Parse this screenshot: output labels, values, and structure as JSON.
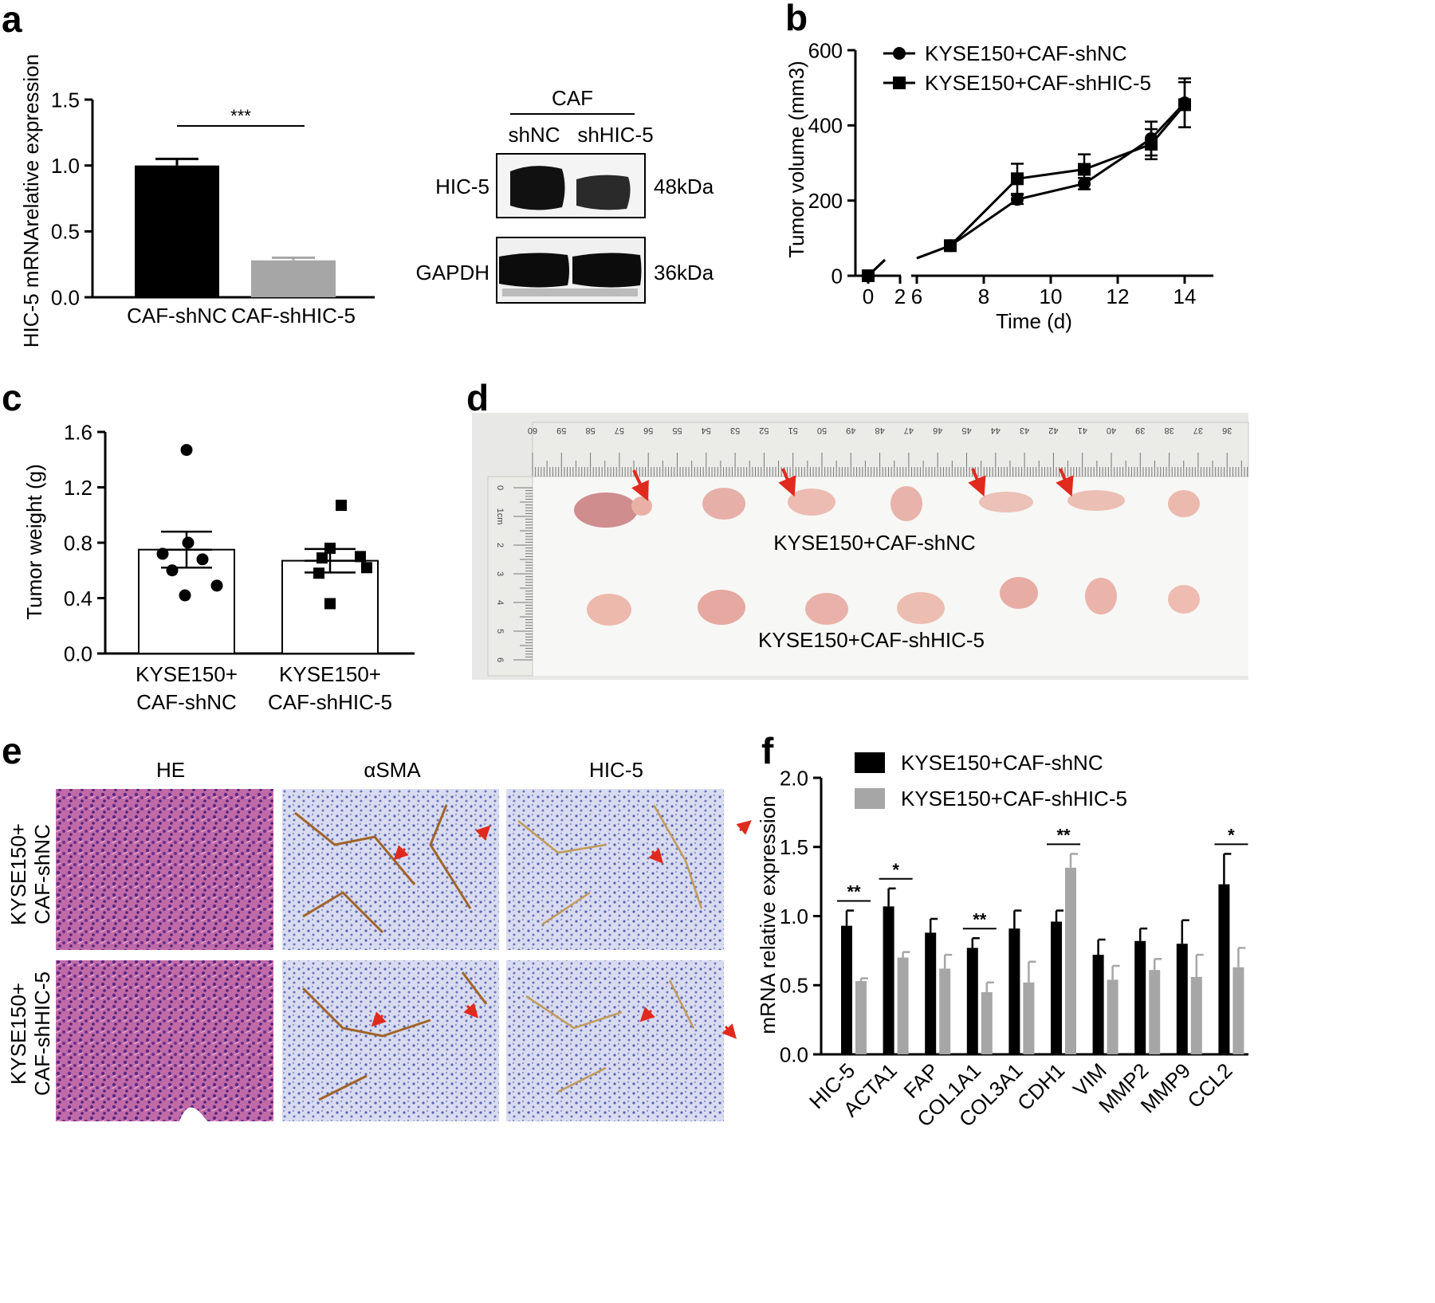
{
  "panels": {
    "a": "a",
    "b": "b",
    "c": "c",
    "d": "d",
    "e": "e",
    "f": "f"
  },
  "blot": {
    "group": "CAF",
    "lanes": [
      "shNC",
      "shHIC-5"
    ],
    "proteins": [
      {
        "name": "HIC-5",
        "size": "48kDa"
      },
      {
        "name": "GAPDH",
        "size": "36kDa"
      }
    ]
  },
  "photo_d": {
    "row1_label": "KYSE150+CAF-shNC",
    "row2_label": "KYSE150+CAF-shHIC-5",
    "ruler_top": [
      "60",
      "59",
      "58",
      "57",
      "56",
      "55",
      "54",
      "53",
      "52",
      "51",
      "50",
      "49",
      "48",
      "47",
      "46",
      "45",
      "44",
      "43",
      "42",
      "41",
      "40",
      "39",
      "38",
      "37",
      "36"
    ],
    "ruler_side": [
      "0",
      "1cm",
      "2",
      "3",
      "4",
      "5",
      "6"
    ]
  },
  "histology": {
    "columns": [
      "HE",
      "αSMA",
      "HIC-5"
    ],
    "rows": [
      {
        "line1": "KYSE150+",
        "line2": "CAF-shNC"
      },
      {
        "line1": "KYSE150+",
        "line2": "CAF-shHIC-5"
      }
    ]
  },
  "colors": {
    "black": "#000000",
    "gray": "#a6a6a7",
    "he": "#b0589a",
    "ihc": "#b9bfe0",
    "tumor": "#e9b4ad",
    "arrow": "#e02a1e"
  },
  "chart_data": [
    {
      "id": "a",
      "type": "bar",
      "categories": [
        "CAF-shNC",
        "CAF-shHIC-5"
      ],
      "values": [
        1.0,
        0.28
      ],
      "errors": [
        0.05,
        0.02
      ],
      "colors": [
        "#000000",
        "#a6a6a7"
      ],
      "ylabel": "HIC-5 mRNArelative expression",
      "ylim": [
        0,
        1.5
      ],
      "yticks": [
        "0.0",
        "0.5",
        "1.0",
        "1.5"
      ],
      "significance": "***"
    },
    {
      "id": "b",
      "type": "line",
      "xlabel": "Time (d)",
      "ylabel": "Tumor volume (mm3)",
      "xticks": [
        "0",
        "2",
        "6",
        "8",
        "10",
        "12",
        "14"
      ],
      "yticks": [
        "0",
        "200",
        "400",
        "600"
      ],
      "ylim": [
        0,
        600
      ],
      "series": [
        {
          "name": "KYSE150+CAF-shNC",
          "marker": "circle",
          "x": [
            0,
            7,
            9,
            11,
            13,
            14
          ],
          "y": [
            0,
            80,
            203,
            245,
            365,
            460
          ],
          "err": [
            0,
            5,
            12,
            15,
            45,
            65
          ]
        },
        {
          "name": "KYSE150+CAF-shHIC-5",
          "marker": "square",
          "x": [
            0,
            7,
            9,
            11,
            13,
            14
          ],
          "y": [
            0,
            80,
            258,
            283,
            350,
            455
          ],
          "err": [
            0,
            5,
            40,
            40,
            40,
            60
          ]
        }
      ]
    },
    {
      "id": "c",
      "type": "scatter",
      "ylabel": "Tumor weight (g)",
      "ylim": [
        0,
        1.6
      ],
      "yticks": [
        "0.0",
        "0.4",
        "0.8",
        "1.2",
        "1.6"
      ],
      "groups": [
        {
          "label_line1": "KYSE150+",
          "label_line2": "CAF-shNC",
          "marker": "circle",
          "mean": 0.75,
          "sem": 0.13,
          "points": [
            1.47,
            0.8,
            0.72,
            0.68,
            0.6,
            0.49,
            0.42
          ]
        },
        {
          "label_line1": "KYSE150+",
          "label_line2": "CAF-shHIC-5",
          "marker": "square",
          "mean": 0.67,
          "sem": 0.085,
          "points": [
            1.07,
            0.76,
            0.7,
            0.69,
            0.62,
            0.58,
            0.36
          ]
        }
      ]
    },
    {
      "id": "f",
      "type": "bar",
      "ylabel": "mRNA relative expression",
      "ylim": [
        0,
        2.0
      ],
      "yticks": [
        "0.0",
        "0.5",
        "1.0",
        "1.5",
        "2.0"
      ],
      "categories": [
        "HIC-5",
        "ACTA1",
        "FAP",
        "COL1A1",
        "COL3A1",
        "CDH1",
        "VIM",
        "MMP2",
        "MMP9",
        "CCL2"
      ],
      "series": [
        {
          "name": "KYSE150+CAF-shNC",
          "color": "#000000",
          "values": [
            0.93,
            1.07,
            0.88,
            0.77,
            0.91,
            0.96,
            0.72,
            0.82,
            0.8,
            1.23
          ],
          "err": [
            0.11,
            0.13,
            0.1,
            0.07,
            0.13,
            0.08,
            0.11,
            0.09,
            0.17,
            0.22
          ]
        },
        {
          "name": "KYSE150+CAF-shHIC-5",
          "color": "#a6a6a7",
          "values": [
            0.53,
            0.7,
            0.62,
            0.45,
            0.52,
            1.35,
            0.54,
            0.61,
            0.56,
            0.63
          ],
          "err": [
            0.02,
            0.04,
            0.1,
            0.07,
            0.15,
            0.1,
            0.1,
            0.08,
            0.16,
            0.14
          ]
        }
      ],
      "significance": [
        "**",
        "*",
        "",
        "**",
        "",
        "**",
        "",
        "",
        "",
        "*"
      ]
    }
  ]
}
